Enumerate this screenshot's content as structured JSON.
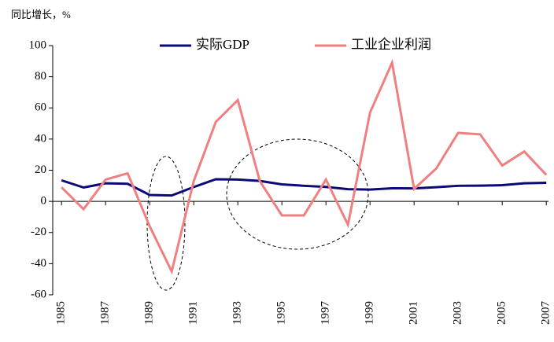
{
  "chart_data": {
    "type": "line",
    "y_label": "同比增长，%",
    "x": [
      1985,
      1986,
      1987,
      1988,
      1989,
      1990,
      1991,
      1992,
      1993,
      1994,
      1995,
      1996,
      1997,
      1998,
      1999,
      2000,
      2001,
      2002,
      2003,
      2004,
      2005,
      2006,
      2007
    ],
    "series": [
      {
        "name": "实际GDP",
        "color": "#0a0a78",
        "values": [
          13.5,
          8.9,
          11.6,
          11.3,
          4.1,
          3.8,
          9.2,
          14.2,
          14.0,
          13.1,
          10.9,
          10.0,
          9.3,
          7.8,
          7.6,
          8.4,
          8.3,
          9.1,
          10.0,
          10.1,
          10.4,
          11.6,
          11.9
        ]
      },
      {
        "name": "工业企业利润",
        "color": "#f08080",
        "values": [
          9,
          -5,
          14,
          18,
          -16,
          -45,
          13,
          51,
          65,
          13,
          -9,
          -9,
          14,
          -15,
          57,
          89,
          8,
          21,
          44,
          43,
          23,
          32,
          17
        ]
      }
    ],
    "xlim": [
      1984.6,
      2007.1
    ],
    "xticks": [
      1985,
      1987,
      1989,
      1991,
      1993,
      1995,
      1997,
      1999,
      2001,
      2003,
      2005,
      2007
    ],
    "ylim": [
      -60,
      100
    ],
    "yticks": [
      -60,
      -40,
      -20,
      0,
      20,
      40,
      60,
      80,
      100
    ]
  }
}
